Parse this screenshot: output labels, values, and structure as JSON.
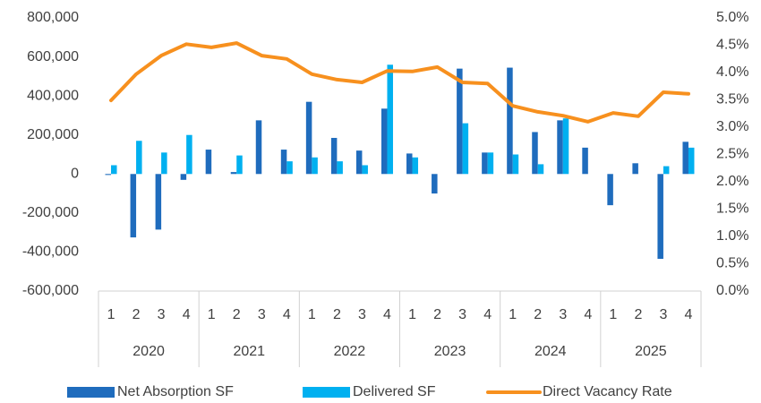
{
  "chart_data": {
    "type": "bar-line",
    "categories": [
      "1",
      "2",
      "3",
      "4",
      "1",
      "2",
      "3",
      "4",
      "1",
      "2",
      "3",
      "4",
      "1",
      "2",
      "3",
      "4",
      "1",
      "2",
      "3",
      "4",
      "1",
      "2",
      "3",
      "4"
    ],
    "years": [
      "2020",
      "2021",
      "2022",
      "2023",
      "2024",
      "2025"
    ],
    "series": [
      {
        "name": "Net Absorption SF",
        "type": "bar",
        "color": "#1f6cbd",
        "values": [
          -5000,
          -325000,
          -285000,
          -30000,
          125000,
          10000,
          275000,
          125000,
          370000,
          185000,
          120000,
          335000,
          105000,
          -100000,
          540000,
          110000,
          545000,
          215000,
          275000,
          135000,
          -160000,
          55000,
          -435000,
          165000
        ]
      },
      {
        "name": "Delivered SF",
        "type": "bar",
        "color": "#00b0f0",
        "values": [
          45000,
          170000,
          110000,
          200000,
          0,
          95000,
          0,
          65000,
          85000,
          65000,
          45000,
          560000,
          85000,
          0,
          260000,
          110000,
          100000,
          50000,
          285000,
          0,
          0,
          0,
          40000,
          135000
        ]
      },
      {
        "name": "Direct Vacancy Rate",
        "type": "line",
        "axis": "y2",
        "color": "#f7901e",
        "values": [
          3.49,
          3.97,
          4.31,
          4.52,
          4.46,
          4.54,
          4.31,
          4.25,
          3.97,
          3.87,
          3.82,
          4.03,
          4.02,
          4.1,
          3.82,
          3.8,
          3.39,
          3.28,
          3.21,
          3.1,
          3.26,
          3.2,
          3.64,
          3.61
        ]
      }
    ],
    "ylim": [
      -600000,
      800000
    ],
    "yticks": [
      {
        "value": -600000,
        "label": "-600,000"
      },
      {
        "value": -400000,
        "label": "-400,000"
      },
      {
        "value": -200000,
        "label": "-200,000"
      },
      0,
      {
        "value": 200000,
        "label": "200,000"
      },
      {
        "value": 400000,
        "label": "400,000"
      },
      {
        "value": 600000,
        "label": "600,000"
      },
      {
        "value": 800000,
        "label": "800,000"
      }
    ],
    "y2lim": [
      0,
      5
    ],
    "y2ticks": [
      {
        "value": 0,
        "label": "0.0%"
      },
      {
        "value": 0.5,
        "label": "0.5%"
      },
      {
        "value": 1,
        "label": "1.0%"
      },
      {
        "value": 1.5,
        "label": "1.5%"
      },
      {
        "value": 2,
        "label": "2.0%"
      },
      {
        "value": 2.5,
        "label": "2.5%"
      },
      {
        "value": 3,
        "label": "3.0%"
      },
      {
        "value": 3.5,
        "label": "3.5%"
      },
      {
        "value": 4,
        "label": "4.0%"
      },
      {
        "value": 4.5,
        "label": "4.5%"
      },
      {
        "value": 5,
        "label": "5.0%"
      }
    ],
    "grid": false,
    "legend": "bottom"
  }
}
